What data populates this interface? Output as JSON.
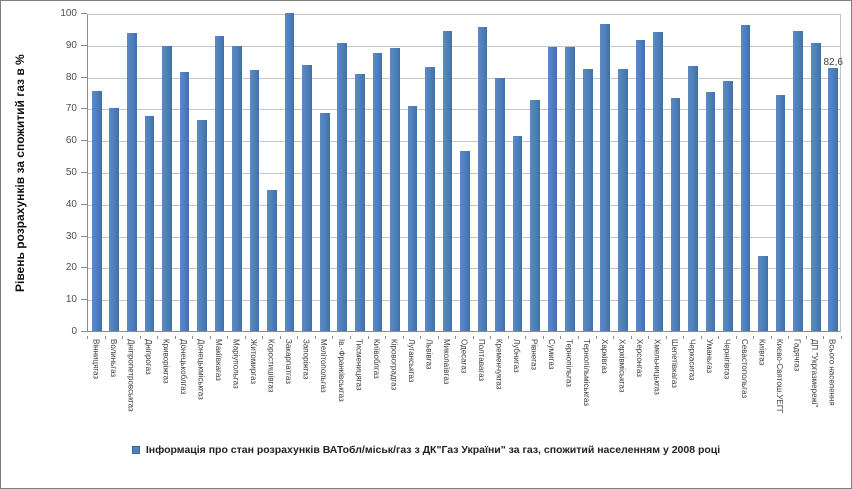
{
  "chart_data": {
    "type": "bar",
    "title": "",
    "xlabel": "",
    "ylabel": "Рівень розрахунків за спожитий газ в %",
    "ylim": [
      0,
      100
    ],
    "ytick_step": 10,
    "grid": true,
    "legend_position": "bottom",
    "legend": "Інформація про стан розрахунків ВАТобл/міськ/газ з ДК\"Газ України\" за газ, спожитий населенням у 2008 році",
    "bar_color": "#4F81BD",
    "categories": [
      "Вінницягаз",
      "Волиньгаз",
      "Дніпропетровськгаз",
      "Дніпрогаз",
      "Криворіжгаз",
      "Донецькоблгаз",
      "Донецькміськгаз",
      "Макіївкагаз",
      "Маріупольгаз",
      "Житомиргаз",
      "Коростишівгаз",
      "Закарпатгаз",
      "Запоріжгаз",
      "Мелітопольгаз",
      "Ів.-Франківськгаз",
      "Тисменицягаз",
      "Київоблгаз",
      "Кіровоградгаз",
      "Луганськгаз",
      "Львівгаз",
      "Миколаївгаз",
      "Одесагаз",
      "Полтавагаз",
      "Кременчукгаз",
      "Лубнигаз",
      "Рівнегаз",
      "Сумигаз",
      "Тернопільгаз",
      "Тернопільміськгаз",
      "Харківгаз",
      "Харківміськгаз",
      "Херсонгаз",
      "Хмельницькгаз",
      "Шепетівкагаз",
      "Черкасигаз",
      "Уманьгаз",
      "Чернігівгаз",
      "Севастопольгаз",
      "Київгаз",
      "Києво-Святош.УЕГГ",
      "Гадячгаз",
      "ДП \"Укргазмережі\"",
      "Всього населення"
    ],
    "values": [
      75.5,
      70.0,
      93.7,
      67.7,
      89.5,
      81.3,
      66.5,
      92.8,
      89.6,
      82.0,
      44.2,
      100.0,
      83.7,
      68.5,
      90.6,
      80.9,
      87.3,
      89.0,
      70.8,
      83.0,
      94.4,
      56.6,
      95.5,
      79.5,
      61.3,
      72.5,
      89.4,
      89.2,
      82.5,
      96.5,
      82.5,
      91.4,
      94.0,
      73.4,
      83.2,
      75.3,
      78.5,
      96.3,
      23.7,
      74.3,
      94.2,
      90.5,
      82.6
    ],
    "annotations": [
      {
        "index": 42,
        "text": "82,6"
      }
    ]
  }
}
